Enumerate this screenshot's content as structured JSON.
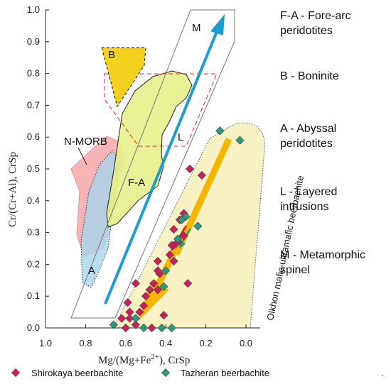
{
  "chart_data": {
    "type": "scatter",
    "xlabel": "Mg/(Mg+Fe²⁺), CrSp",
    "ylabel": "Cr/(Cr+Al), CrSp",
    "xlim": [
      1.0,
      0.0
    ],
    "ylim": [
      0.0,
      1.0
    ],
    "x_reversed": true,
    "grid": false,
    "x_ticks": [
      "1.0",
      "0.8",
      "0.6",
      "0.4",
      "0.2",
      "0.0"
    ],
    "y_ticks": [
      "0.0",
      "0.1",
      "0.2",
      "0.3",
      "0.4",
      "0.5",
      "0.6",
      "0.7",
      "0.8",
      "0.9",
      "1.0"
    ],
    "series": [
      {
        "name": "Shirokaya beerbachite",
        "color": "#c8205a",
        "marker": "diamond",
        "points": [
          [
            0.28,
            0.5
          ],
          [
            0.22,
            0.48
          ],
          [
            0.31,
            0.36
          ],
          [
            0.33,
            0.34
          ],
          [
            0.36,
            0.31
          ],
          [
            0.31,
            0.29
          ],
          [
            0.34,
            0.27
          ],
          [
            0.37,
            0.26
          ],
          [
            0.38,
            0.23
          ],
          [
            0.36,
            0.21
          ],
          [
            0.44,
            0.21
          ],
          [
            0.29,
            0.14
          ],
          [
            0.43,
            0.17
          ],
          [
            0.44,
            0.18
          ],
          [
            0.46,
            0.14
          ],
          [
            0.44,
            0.12
          ],
          [
            0.48,
            0.12
          ],
          [
            0.5,
            0.1
          ],
          [
            0.55,
            0.14
          ],
          [
            0.59,
            0.08
          ],
          [
            0.51,
            0.07
          ],
          [
            0.58,
            0.05
          ],
          [
            0.53,
            0.05
          ],
          [
            0.41,
            0.04
          ],
          [
            0.58,
            0.03
          ],
          [
            0.62,
            0.03
          ],
          [
            0.6,
            0.0
          ],
          [
            0.47,
            0.0
          ],
          [
            0.55,
            0.01
          ]
        ]
      },
      {
        "name": "Tazheran beerbachite",
        "color": "#2a9a78",
        "marker": "diamond",
        "points": [
          [
            0.13,
            0.62
          ],
          [
            0.03,
            0.59
          ],
          [
            0.3,
            0.35
          ],
          [
            0.32,
            0.34
          ],
          [
            0.24,
            0.32
          ],
          [
            0.34,
            0.28
          ],
          [
            0.4,
            0.18
          ],
          [
            0.41,
            0.13
          ],
          [
            0.37,
            0.0
          ],
          [
            0.66,
            0.01
          ],
          [
            0.55,
            0.03
          ],
          [
            0.51,
            0.0
          ],
          [
            0.42,
            0.0
          ]
        ]
      }
    ],
    "fields": [
      {
        "label": "N-MORB",
        "color": "#f7a8a8"
      },
      {
        "label": "A",
        "color": "#a8d4ee"
      },
      {
        "label": "F-A",
        "color": "#e6ef8a"
      },
      {
        "label": "B",
        "color": "#f5d11f"
      },
      {
        "label": "L",
        "color": "#e23030"
      },
      {
        "label": "M",
        "color": "#888888"
      },
      {
        "label": "Olkhon mafic-ultramafic beerbachite",
        "color": "#f8f1c4"
      }
    ],
    "annotation_side": [
      {
        "line1": "F-A - Fore-arc",
        "line2": "peridotites"
      },
      {
        "line1": "B - Boninite",
        "line2": ""
      },
      {
        "line1": "A - Abyssal",
        "line2": "peridotites"
      },
      {
        "line1": "L - Layered",
        "line2": "intrusions"
      },
      {
        "line1": "M - Metamorphic",
        "line2": "spinel"
      }
    ],
    "arrow_color": "#1e9bd0",
    "trend_color": "#f7b500"
  },
  "side_notes": {
    "fa_1": "F-A - Fore-arc",
    "fa_2": "peridotites",
    "b_1": "B - Boninite",
    "a_1": "A - Abyssal",
    "a_2": "peridotites",
    "l_1": "L - Layered",
    "l_2": "intrusions",
    "m_1": "M - Metamorphic",
    "m_2": "spinel"
  },
  "field_labels": {
    "nmorb": "N-MORB",
    "a": "A",
    "fa": "F-A",
    "b": "B",
    "l": "L",
    "m": "M",
    "olkhon": "Olkhon mafic-ultramafic beerbachite"
  },
  "legend": {
    "shirokaya": "Shirokaya beerbachite",
    "tazheran": "Tazheran beerbachite"
  },
  "axes": {
    "xlabel_main": "Mg/(Mg+Fe",
    "xlabel_sup": "2+",
    "xlabel_tail": "), CrSp",
    "ylabel": "Cr/(Cr+Al), CrSp"
  },
  "corner_mark": "."
}
